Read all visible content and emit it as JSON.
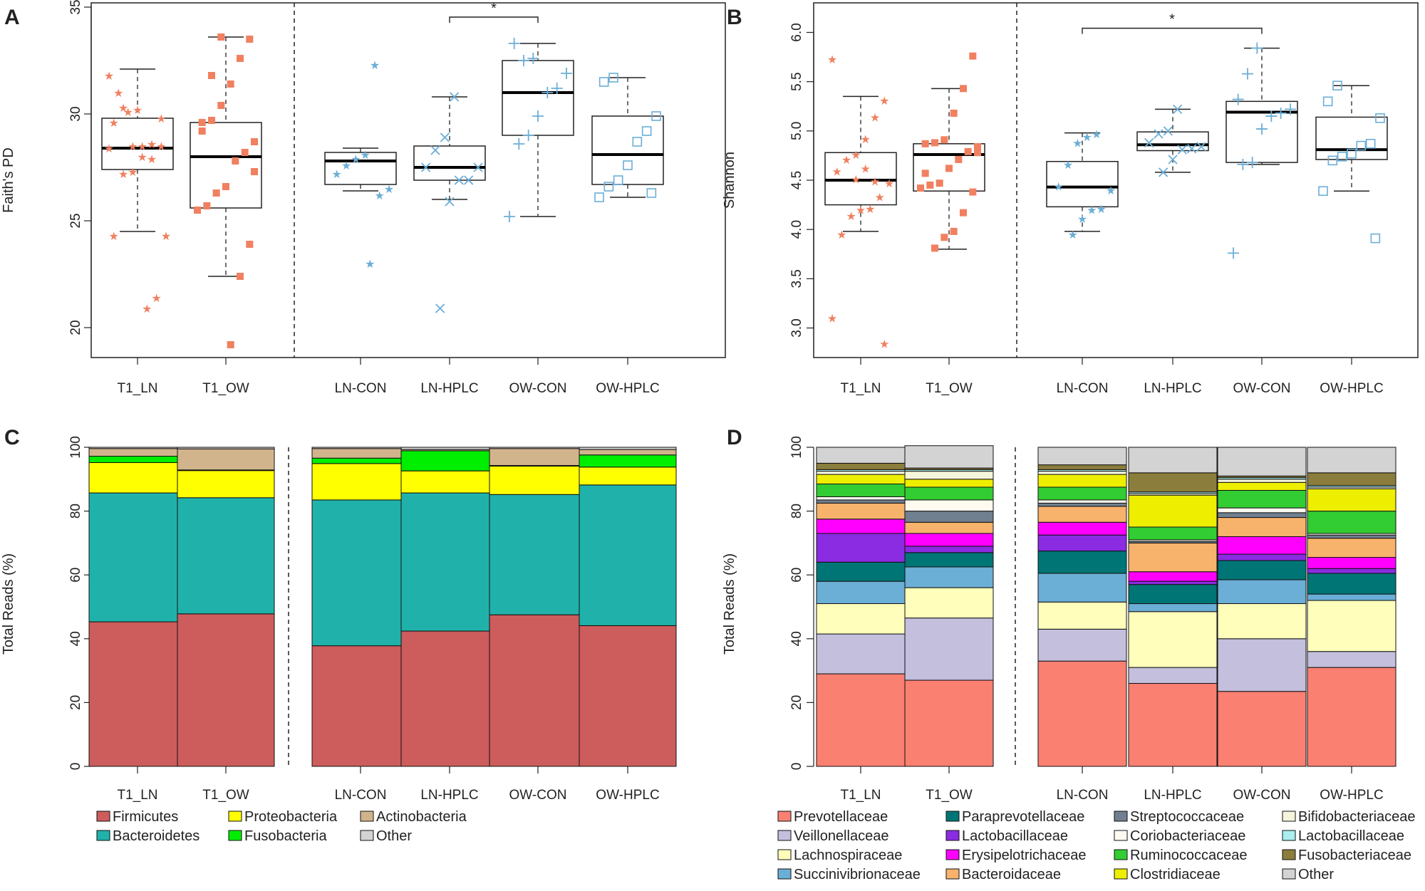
{
  "figure": {
    "panels": [
      "A",
      "B",
      "C",
      "D"
    ],
    "colors": {
      "ln": "#f08060",
      "ow": "#6baed6",
      "axis": "#222222"
    }
  },
  "chart_data": [
    {
      "panel": "A",
      "type": "box",
      "title": "",
      "xlabel": "",
      "ylabel": "Faith's PD",
      "ylim": [
        18.6,
        35.2
      ],
      "yticks": [
        20,
        25,
        30,
        35
      ],
      "categories": [
        "T1_LN",
        "T1_OW",
        "LN-CON",
        "LN-HPLC",
        "OW-CON",
        "OW-HPLC"
      ],
      "separator_after": 1,
      "boxes": [
        {
          "q1": 27.4,
          "median": 28.4,
          "q3": 29.8,
          "whisker_low": 24.5,
          "whisker_high": 32.1
        },
        {
          "q1": 25.6,
          "median": 28.0,
          "q3": 29.6,
          "whisker_low": 22.4,
          "whisker_high": 33.6
        },
        {
          "q1": 26.7,
          "median": 27.8,
          "q3": 28.2,
          "whisker_low": 26.4,
          "whisker_high": 28.4
        },
        {
          "q1": 26.9,
          "median": 27.5,
          "q3": 28.5,
          "whisker_low": 26.0,
          "whisker_high": 30.8
        },
        {
          "q1": 29.0,
          "median": 31.0,
          "q3": 32.5,
          "whisker_low": 25.2,
          "whisker_high": 33.3
        },
        {
          "q1": 26.7,
          "median": 28.1,
          "q3": 29.9,
          "whisker_low": 26.1,
          "whisker_high": 31.7
        }
      ],
      "points": [
        [
          31.8,
          29.8,
          28.6,
          28.5,
          27.3,
          27.2,
          24.3,
          24.3,
          21.4,
          20.9,
          30.2,
          30.1,
          31.0,
          28.4,
          28.5,
          27.9,
          28.0,
          28.5,
          30.3,
          29.6
        ],
        [
          33.5,
          32.6,
          31.4,
          30.4,
          29.7,
          29.2,
          28.7,
          28.2,
          27.8,
          26.6,
          26.3,
          25.7,
          25.5,
          23.9,
          22.4,
          19.2,
          33.6,
          31.8,
          29.6,
          27.3
        ],
        [
          32.3,
          28.1,
          27.9,
          27.6,
          27.2,
          26.5,
          26.2,
          23.0
        ],
        [
          30.8,
          28.9,
          28.3,
          27.5,
          27.5,
          26.9,
          26.9,
          25.9,
          20.9
        ],
        [
          32.6,
          32.5,
          33.3,
          31.9,
          31.2,
          31.0,
          29.9,
          29.0,
          28.6,
          25.2
        ],
        [
          31.7,
          31.5,
          29.9,
          29.2,
          28.7,
          27.6,
          26.9,
          26.6,
          26.1,
          26.3
        ]
      ],
      "significance": {
        "from": "LN-HPLC",
        "to": "OW-CON",
        "label": "*"
      }
    },
    {
      "panel": "B",
      "type": "box",
      "title": "",
      "xlabel": "",
      "ylabel": "Shannon",
      "ylim": [
        2.7,
        6.3
      ],
      "yticks": [
        3.0,
        3.5,
        4.0,
        4.5,
        5.0,
        5.5,
        6.0
      ],
      "categories": [
        "T1_LN",
        "T1_OW",
        "LN-CON",
        "LN-HPLC",
        "OW-CON",
        "OW-HPLC"
      ],
      "separator_after": 1,
      "boxes": [
        {
          "q1": 4.25,
          "median": 4.5,
          "q3": 4.78,
          "whisker_low": 3.98,
          "whisker_high": 5.35
        },
        {
          "q1": 4.39,
          "median": 4.76,
          "q3": 4.87,
          "whisker_low": 3.8,
          "whisker_high": 5.43
        },
        {
          "q1": 4.23,
          "median": 4.43,
          "q3": 4.69,
          "whisker_low": 3.98,
          "whisker_high": 4.98
        },
        {
          "q1": 4.8,
          "median": 4.86,
          "q3": 4.99,
          "whisker_low": 4.58,
          "whisker_high": 5.22
        },
        {
          "q1": 4.68,
          "median": 5.19,
          "q3": 5.3,
          "whisker_low": 4.66,
          "whisker_high": 5.84
        },
        {
          "q1": 4.71,
          "median": 4.81,
          "q3": 5.14,
          "whisker_low": 4.39,
          "whisker_high": 5.46
        }
      ],
      "points": [
        [
          5.73,
          5.31,
          5.14,
          4.92,
          4.76,
          4.71,
          4.59,
          4.47,
          4.33,
          4.21,
          4.2,
          4.14,
          3.95,
          3.1,
          2.84,
          4.49,
          4.62,
          4.51
        ],
        [
          5.76,
          5.43,
          5.18,
          4.91,
          4.88,
          4.87,
          4.84,
          4.79,
          4.71,
          4.62,
          4.47,
          4.45,
          4.42,
          4.38,
          4.17,
          3.98,
          3.92,
          3.81,
          4.57,
          4.78
        ],
        [
          4.97,
          4.94,
          4.88,
          4.66,
          4.44,
          4.4,
          4.21,
          4.2,
          4.11,
          3.95
        ],
        [
          5.22,
          5.0,
          4.97,
          4.88,
          4.84,
          4.82,
          4.81,
          4.71,
          4.58
        ],
        [
          5.84,
          5.58,
          5.32,
          5.22,
          5.18,
          5.15,
          5.02,
          4.68,
          4.66,
          3.76
        ],
        [
          5.46,
          5.3,
          5.13,
          4.87,
          4.85,
          4.77,
          4.74,
          4.7,
          4.39,
          3.91
        ]
      ],
      "significance": {
        "from": "LN-CON",
        "to": "OW-CON",
        "label": "*"
      }
    },
    {
      "panel": "C",
      "type": "bar",
      "stacked": true,
      "title": "",
      "xlabel": "",
      "ylabel": "Total Reads (%)",
      "ylim": [
        0,
        100
      ],
      "yticks": [
        0,
        20,
        40,
        60,
        80,
        100
      ],
      "categories": [
        "T1_LN",
        "T1_OW",
        "LN-CON",
        "LN-HPLC",
        "OW-CON",
        "OW-HPLC"
      ],
      "separator_after": 1,
      "series": [
        {
          "name": "Firmicutes",
          "color": "#cd5c5c",
          "values": [
            45.3,
            47.8,
            37.8,
            42.4,
            47.5,
            44.1
          ]
        },
        {
          "name": "Bacteroidetes",
          "color": "#20b2aa",
          "values": [
            40.4,
            36.4,
            45.7,
            43.3,
            37.7,
            44.1
          ]
        },
        {
          "name": "Proteobacteria",
          "color": "#ffff00",
          "values": [
            9.5,
            8.5,
            11.4,
            6.9,
            8.9,
            5.6
          ]
        },
        {
          "name": "Fusobacteria",
          "color": "#00ee00",
          "values": [
            2.0,
            0.2,
            1.7,
            6.3,
            0.2,
            3.8
          ]
        },
        {
          "name": "Actinobacteria",
          "color": "#d2b48c",
          "values": [
            2.4,
            6.6,
            3.0,
            0.4,
            5.3,
            1.7
          ]
        },
        {
          "name": "Other",
          "color": "#d3d3d3",
          "values": [
            0.4,
            0.5,
            0.4,
            0.7,
            0.4,
            0.7
          ]
        }
      ],
      "legend": {
        "placement": "bottom",
        "columns": [
          [
            "Firmicutes",
            "Bacteroidetes"
          ],
          [
            "Proteobacteria",
            "Fusobacteria"
          ],
          [
            "Actinobacteria",
            "Other"
          ]
        ]
      }
    },
    {
      "panel": "D",
      "type": "bar",
      "stacked": true,
      "title": "",
      "xlabel": "",
      "ylabel": "Total Reads (%)",
      "ylim": [
        0,
        100
      ],
      "yticks": [
        0,
        20,
        40,
        60,
        80,
        100
      ],
      "categories": [
        "T1_LN",
        "T1_OW",
        "LN-CON",
        "LN-HPLC",
        "OW-CON",
        "OW-HPLC"
      ],
      "separator_after": 1,
      "series": [
        {
          "name": "Prevotellaceae",
          "color": "#fa8072",
          "values": [
            29.0,
            27.0,
            33.0,
            26.0,
            23.5,
            31.0
          ]
        },
        {
          "name": "Veillonellaceae",
          "color": "#c3bfdd",
          "values": [
            12.5,
            19.5,
            10.0,
            5.0,
            16.5,
            5.0
          ]
        },
        {
          "name": "Lachnospiraceae",
          "color": "#ffffbb",
          "values": [
            9.5,
            9.5,
            8.5,
            17.5,
            11.0,
            16.0
          ]
        },
        {
          "name": "Succinivibrionaceae",
          "color": "#6baed6",
          "values": [
            7.0,
            6.5,
            9.0,
            2.5,
            7.5,
            2.0
          ]
        },
        {
          "name": "Paraprevotellaceae",
          "color": "#007575",
          "values": [
            6.0,
            4.5,
            7.0,
            6.0,
            6.0,
            6.5
          ]
        },
        {
          "name": "Lactobacillaceae",
          "color": "#8b2be2",
          "values": [
            9.0,
            2.0,
            5.0,
            1.0,
            2.0,
            1.5
          ]
        },
        {
          "name": "Erysipelotrichaceae",
          "color": "#ff00ff",
          "values": [
            4.5,
            4.0,
            4.0,
            3.0,
            5.5,
            3.5
          ]
        },
        {
          "name": "Bacteroidaceae",
          "color": "#f7b26b",
          "values": [
            5.0,
            3.5,
            5.0,
            9.0,
            6.0,
            6.0
          ]
        },
        {
          "name": "Streptococcaceae",
          "color": "#708090",
          "values": [
            1.0,
            3.5,
            1.0,
            0.5,
            1.5,
            1.0
          ]
        },
        {
          "name": "Coriobacteriaceae",
          "color": "#fffaf0",
          "values": [
            1.0,
            3.5,
            1.0,
            0.5,
            1.5,
            0.5
          ]
        },
        {
          "name": "Ruminococcaceae",
          "color": "#32cd32",
          "values": [
            4.0,
            4.0,
            4.0,
            4.0,
            5.5,
            7.0
          ]
        },
        {
          "name": "Clostridiaceae",
          "color": "#eeee00",
          "values": [
            3.0,
            2.5,
            4.0,
            10.0,
            2.5,
            7.0
          ]
        },
        {
          "name": "Bifidobacteriaceae",
          "color": "#f5f5dc",
          "values": [
            1.0,
            2.5,
            1.0,
            0.5,
            1.0,
            0.5
          ]
        },
        {
          "name": "Lactobacillaceae",
          "color": "#aaeeee",
          "values": [
            0.5,
            0.5,
            0.5,
            0.5,
            0.5,
            0.5
          ]
        },
        {
          "name": "Fusobacteriaceae",
          "color": "#8b7d3c",
          "values": [
            2.0,
            0.5,
            1.5,
            6.0,
            0.5,
            4.0
          ]
        },
        {
          "name": "Other",
          "color": "#d3d3d3",
          "values": [
            5.0,
            7.0,
            5.5,
            8.0,
            9.0,
            8.0
          ]
        }
      ],
      "legend": {
        "placement": "bottom",
        "columns": [
          [
            "Prevotellaceae",
            "Veillonellaceae",
            "Lachnospiraceae",
            "Succinivibrionaceae"
          ],
          [
            "Paraprevotellaceae",
            "Lactobacillaceae",
            "Erysipelotrichaceae",
            "Bacteroidaceae"
          ],
          [
            "Streptococcaceae",
            "Coriobacteriaceae",
            "Ruminococcaceae",
            "Clostridiaceae"
          ],
          [
            "Bifidobacteriaceae",
            "Lactobacillaceae",
            "Fusobacteriaceae",
            "Other"
          ]
        ]
      }
    }
  ]
}
